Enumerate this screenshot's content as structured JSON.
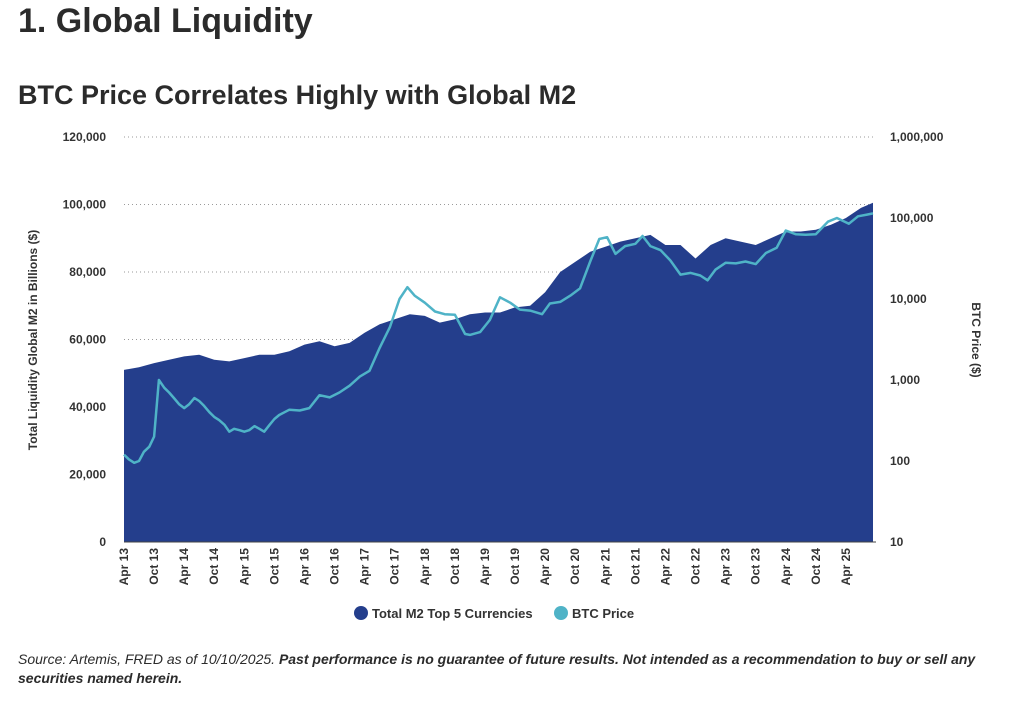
{
  "page": {
    "title": "1. Global Liquidity"
  },
  "colors": {
    "m2": "#243e8c",
    "btc": "#4fb3c7",
    "grid": "#9a9a9a",
    "text": "#333333"
  },
  "footnote": {
    "source": "Source: Artemis, FRED as of 10/10/2025.",
    "disclaimer": "Past performance is no guarantee of future results. Not intended as a recommendation to buy or sell any securities named herein."
  },
  "chart_data": {
    "type": "area",
    "title": "BTC Price Correlates Highly with Global M2",
    "ylabel": "Total Liquidity Global M2 in Billions ($)",
    "y2label": "BTC Price ($)",
    "ylim": [
      0,
      120000
    ],
    "y2lim": [
      10,
      1000000
    ],
    "y2scale": "log",
    "yticks": [
      0,
      20000,
      40000,
      60000,
      80000,
      100000,
      120000
    ],
    "ytick_labels": [
      "0",
      "20,000",
      "40,000",
      "60,000",
      "80,000",
      "100,000",
      "120,000"
    ],
    "y2ticks": [
      10,
      100,
      1000,
      10000,
      100000,
      1000000
    ],
    "y2tick_labels": [
      "10",
      "100",
      "1,000",
      "10,000",
      "100,000",
      "1,000,000"
    ],
    "xlim": [
      2013.25,
      2025.75
    ],
    "xticks": [
      2013.25,
      2013.75,
      2014.25,
      2014.75,
      2015.25,
      2015.75,
      2016.25,
      2016.75,
      2017.25,
      2017.75,
      2018.25,
      2018.75,
      2019.25,
      2019.75,
      2020.25,
      2020.75,
      2021.25,
      2021.75,
      2022.25,
      2022.75,
      2023.25,
      2023.75,
      2024.25,
      2024.75,
      2025.25
    ],
    "xtick_labels": [
      "Apr 13",
      "Oct 13",
      "Apr 14",
      "Oct 14",
      "Apr 15",
      "Oct 15",
      "Apr 16",
      "Oct 16",
      "Apr 17",
      "Oct 17",
      "Apr 18",
      "Oct 18",
      "Apr 19",
      "Oct 19",
      "Apr 20",
      "Oct 20",
      "Apr 21",
      "Oct 21",
      "Apr 22",
      "Oct 22",
      "Apr 23",
      "Oct 23",
      "Apr 24",
      "Oct 24",
      "Apr 25"
    ],
    "grid": "horizontal-dotted",
    "legend_position": "bottom-center",
    "series": [
      {
        "name": "Total M2 Top 5 Currencies",
        "type": "area",
        "axis": "left",
        "x": [
          2013.25,
          2013.5,
          2013.75,
          2014.0,
          2014.25,
          2014.5,
          2014.75,
          2015.0,
          2015.25,
          2015.5,
          2015.75,
          2016.0,
          2016.25,
          2016.5,
          2016.75,
          2017.0,
          2017.25,
          2017.5,
          2017.75,
          2018.0,
          2018.25,
          2018.5,
          2018.75,
          2019.0,
          2019.25,
          2019.5,
          2019.75,
          2020.0,
          2020.25,
          2020.5,
          2020.75,
          2021.0,
          2021.25,
          2021.5,
          2021.75,
          2022.0,
          2022.25,
          2022.5,
          2022.75,
          2023.0,
          2023.25,
          2023.5,
          2023.75,
          2024.0,
          2024.25,
          2024.5,
          2024.75,
          2025.0,
          2025.25,
          2025.5,
          2025.7
        ],
        "values": [
          51000,
          51800,
          53000,
          54000,
          55000,
          55500,
          54000,
          53500,
          54500,
          55500,
          55500,
          56500,
          58500,
          59500,
          58000,
          59000,
          62000,
          64500,
          66000,
          67500,
          67000,
          65000,
          66000,
          67500,
          68000,
          68000,
          69500,
          70000,
          74000,
          80000,
          83000,
          86000,
          87500,
          89000,
          90000,
          91000,
          88000,
          88000,
          84000,
          88000,
          90000,
          89000,
          88000,
          90000,
          92000,
          92000,
          92500,
          94000,
          96000,
          99000,
          100500
        ]
      },
      {
        "name": "BTC Price",
        "type": "line",
        "axis": "right",
        "x": [
          2013.25,
          2013.33,
          2013.42,
          2013.5,
          2013.58,
          2013.67,
          2013.75,
          2013.83,
          2013.92,
          2014.0,
          2014.08,
          2014.17,
          2014.25,
          2014.33,
          2014.42,
          2014.5,
          2014.58,
          2014.67,
          2014.75,
          2014.83,
          2014.92,
          2015.0,
          2015.08,
          2015.17,
          2015.25,
          2015.33,
          2015.42,
          2015.5,
          2015.58,
          2015.67,
          2015.75,
          2015.83,
          2015.92,
          2016.0,
          2016.17,
          2016.33,
          2016.5,
          2016.67,
          2016.83,
          2017.0,
          2017.17,
          2017.33,
          2017.5,
          2017.67,
          2017.83,
          2017.96,
          2018.08,
          2018.25,
          2018.42,
          2018.58,
          2018.75,
          2018.92,
          2019.0,
          2019.17,
          2019.33,
          2019.5,
          2019.67,
          2019.83,
          2020.0,
          2020.2,
          2020.33,
          2020.5,
          2020.67,
          2020.83,
          2021.0,
          2021.15,
          2021.28,
          2021.42,
          2021.58,
          2021.75,
          2021.87,
          2022.0,
          2022.17,
          2022.33,
          2022.5,
          2022.67,
          2022.83,
          2022.95,
          2023.08,
          2023.25,
          2023.42,
          2023.58,
          2023.75,
          2023.92,
          2024.1,
          2024.25,
          2024.42,
          2024.58,
          2024.75,
          2024.95,
          2025.1,
          2025.3,
          2025.45,
          2025.6,
          2025.7
        ],
        "values": [
          120,
          105,
          95,
          100,
          130,
          150,
          200,
          1000,
          800,
          700,
          600,
          500,
          450,
          500,
          600,
          550,
          480,
          400,
          350,
          320,
          280,
          230,
          250,
          240,
          230,
          240,
          270,
          250,
          230,
          280,
          330,
          370,
          400,
          430,
          420,
          450,
          650,
          610,
          700,
          850,
          1100,
          1300,
          2500,
          4500,
          10000,
          14000,
          11000,
          9000,
          7000,
          6500,
          6400,
          3700,
          3600,
          3900,
          5500,
          10500,
          9000,
          7400,
          7200,
          6500,
          8800,
          9200,
          11000,
          13500,
          29000,
          55000,
          58000,
          36000,
          45000,
          48000,
          60000,
          45000,
          40000,
          30000,
          20000,
          21000,
          19500,
          17000,
          23000,
          28000,
          27500,
          29000,
          27000,
          37000,
          43000,
          70000,
          63000,
          62000,
          63000,
          90000,
          100000,
          85000,
          105000,
          110000,
          114000
        ]
      }
    ]
  }
}
